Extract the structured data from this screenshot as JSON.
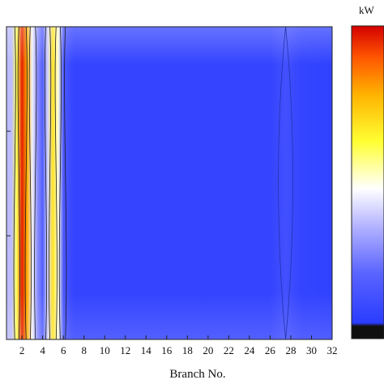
{
  "chart_data": {
    "type": "heatmap",
    "title": "",
    "xlabel": "Branch No.",
    "ylabel": "",
    "xlim": [
      0.5,
      32
    ],
    "xticks": [
      "2",
      "4",
      "6",
      "8",
      "10",
      "12",
      "14",
      "16",
      "18",
      "20",
      "22",
      "24",
      "26",
      "28",
      "30",
      "32"
    ],
    "colorbar": {
      "unit": "kW",
      "placement": "right",
      "colors_top_to_bottom": [
        "#d40000",
        "#ff5500",
        "#ffb300",
        "#ffff33",
        "#ffffff",
        "#b4b4ff",
        "#5a64ff",
        "#2a3cff",
        "#101010"
      ]
    },
    "columns": [
      {
        "branch": 1,
        "level": 0.3
      },
      {
        "branch": 1.5,
        "level": 0.55
      },
      {
        "branch": 2,
        "level": 0.95
      },
      {
        "branch": 2.5,
        "level": 0.72
      },
      {
        "branch": 3,
        "level": 0.4
      },
      {
        "branch": 3.5,
        "level": 0.22
      },
      {
        "branch": 4,
        "level": 0.12
      },
      {
        "branch": 4.5,
        "level": 0.35
      },
      {
        "branch": 5,
        "level": 0.62
      },
      {
        "branch": 5.5,
        "level": 0.45
      },
      {
        "branch": 6,
        "level": 0.1
      },
      {
        "branch": 7,
        "level": 0.03
      },
      {
        "branch": 26,
        "level": 0.03
      },
      {
        "branch": 27.5,
        "level": 0.07
      },
      {
        "branch": 29,
        "level": 0.03
      },
      {
        "branch": 32,
        "level": 0.02
      }
    ]
  }
}
